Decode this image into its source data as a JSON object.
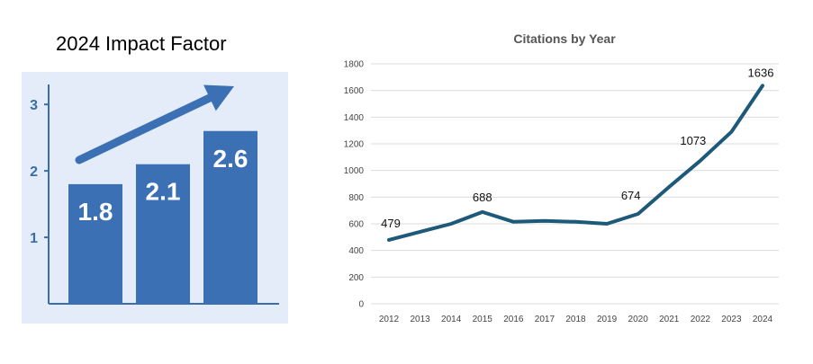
{
  "chart_data": [
    {
      "type": "bar",
      "title": "2024 Impact Factor",
      "categories": [
        "",
        "",
        ""
      ],
      "values": [
        1.8,
        2.1,
        2.6
      ],
      "data_labels": [
        "1.8",
        "2.1",
        "2.6"
      ],
      "yticks": [
        1,
        2,
        3
      ],
      "ytick_labels": [
        "1",
        "2",
        "3"
      ],
      "ylim": [
        0,
        3.3
      ],
      "grid": false,
      "colors": {
        "background": "#e3ecf8",
        "bar": "#3b70b4",
        "axis": "#3a6ea8",
        "arrow": "#3b70b4"
      }
    },
    {
      "type": "line",
      "title": "Citations by Year",
      "x": [
        "2012",
        "2013",
        "2014",
        "2015",
        "2016",
        "2017",
        "2018",
        "2019",
        "2020",
        "2021",
        "2022",
        "2023",
        "2024"
      ],
      "series": [
        {
          "values": [
            479,
            540,
            600,
            688,
            615,
            622,
            615,
            600,
            674,
            877,
            1073,
            1290,
            1636
          ]
        }
      ],
      "annotations": [
        {
          "x": "2012",
          "y": 479,
          "text": "479"
        },
        {
          "x": "2015",
          "y": 688,
          "text": "688"
        },
        {
          "x": "2020",
          "y": 674,
          "text": "674"
        },
        {
          "x": "2022",
          "y": 1073,
          "text": "1073"
        },
        {
          "x": "2024",
          "y": 1636,
          "text": "1636"
        }
      ],
      "yticks": [
        0,
        200,
        400,
        600,
        800,
        1000,
        1200,
        1400,
        1600,
        1800
      ],
      "ytick_labels": [
        "0",
        "200",
        "400",
        "600",
        "800",
        "1000",
        "1200",
        "1400",
        "1600",
        "1800"
      ],
      "ylim": [
        0,
        1800
      ],
      "xlabel": "",
      "ylabel": "",
      "grid": true,
      "legend": "none",
      "colors": {
        "line": "#1d5a7a",
        "grid": "#dcdcdc"
      }
    }
  ]
}
